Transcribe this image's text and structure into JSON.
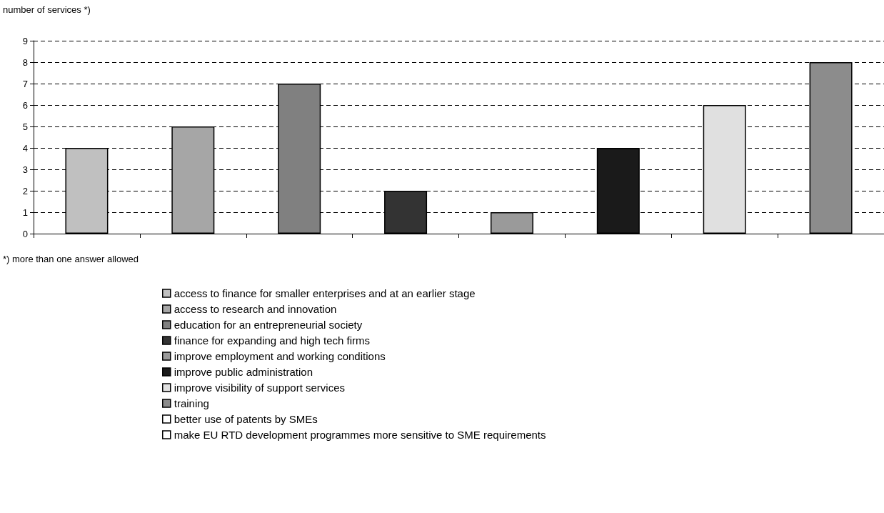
{
  "chart_data": {
    "type": "bar",
    "ylabel": "number of services *)",
    "annotations": [
      "*) more than one answer allowed"
    ],
    "categories": [
      null,
      null,
      null,
      null,
      null,
      null,
      null,
      null
    ],
    "series": [
      {
        "name": "access to finance for smaller enterprises and at an earlier stage",
        "color": "#c0c0c0",
        "values": [
          4,
          null,
          null,
          null,
          null,
          null,
          null,
          null
        ]
      },
      {
        "name": "access to research and innovation",
        "color": "#a6a6a6",
        "values": [
          null,
          5,
          null,
          null,
          null,
          null,
          null,
          null
        ]
      },
      {
        "name": "education for an entrepreneurial society",
        "color": "#808080",
        "values": [
          null,
          null,
          7,
          null,
          null,
          null,
          null,
          null
        ]
      },
      {
        "name": "finance for expanding and high tech firms",
        "color": "#333333",
        "values": [
          null,
          null,
          null,
          2,
          null,
          null,
          null,
          null
        ]
      },
      {
        "name": "improve employment and working conditions",
        "color": "#9a9a9a",
        "values": [
          null,
          null,
          null,
          null,
          1,
          null,
          null,
          null
        ]
      },
      {
        "name": "improve public administration",
        "color": "#1a1a1a",
        "values": [
          null,
          null,
          null,
          null,
          null,
          4,
          null,
          null
        ]
      },
      {
        "name": "improve visibility of support services",
        "color": "#e0e0e0",
        "values": [
          null,
          null,
          null,
          null,
          null,
          null,
          6,
          null
        ]
      },
      {
        "name": "training",
        "color": "#8c8c8c",
        "values": [
          null,
          null,
          null,
          null,
          null,
          null,
          null,
          8
        ]
      },
      {
        "name": "better use of patents by SMEs",
        "color": "#ffffff",
        "values": [
          null,
          null,
          null,
          null,
          null,
          null,
          null,
          null
        ]
      },
      {
        "name": "make EU RTD development programmes more sensitive to SME requirements",
        "color": "#ffffff",
        "values": [
          null,
          null,
          null,
          null,
          null,
          null,
          null,
          null
        ]
      }
    ],
    "ylim": [
      0,
      9
    ],
    "yticks": [
      0,
      1,
      2,
      3,
      4,
      5,
      6,
      7,
      8,
      9
    ],
    "grid": "y",
    "legend": "bottom",
    "tick_labels": "y"
  }
}
